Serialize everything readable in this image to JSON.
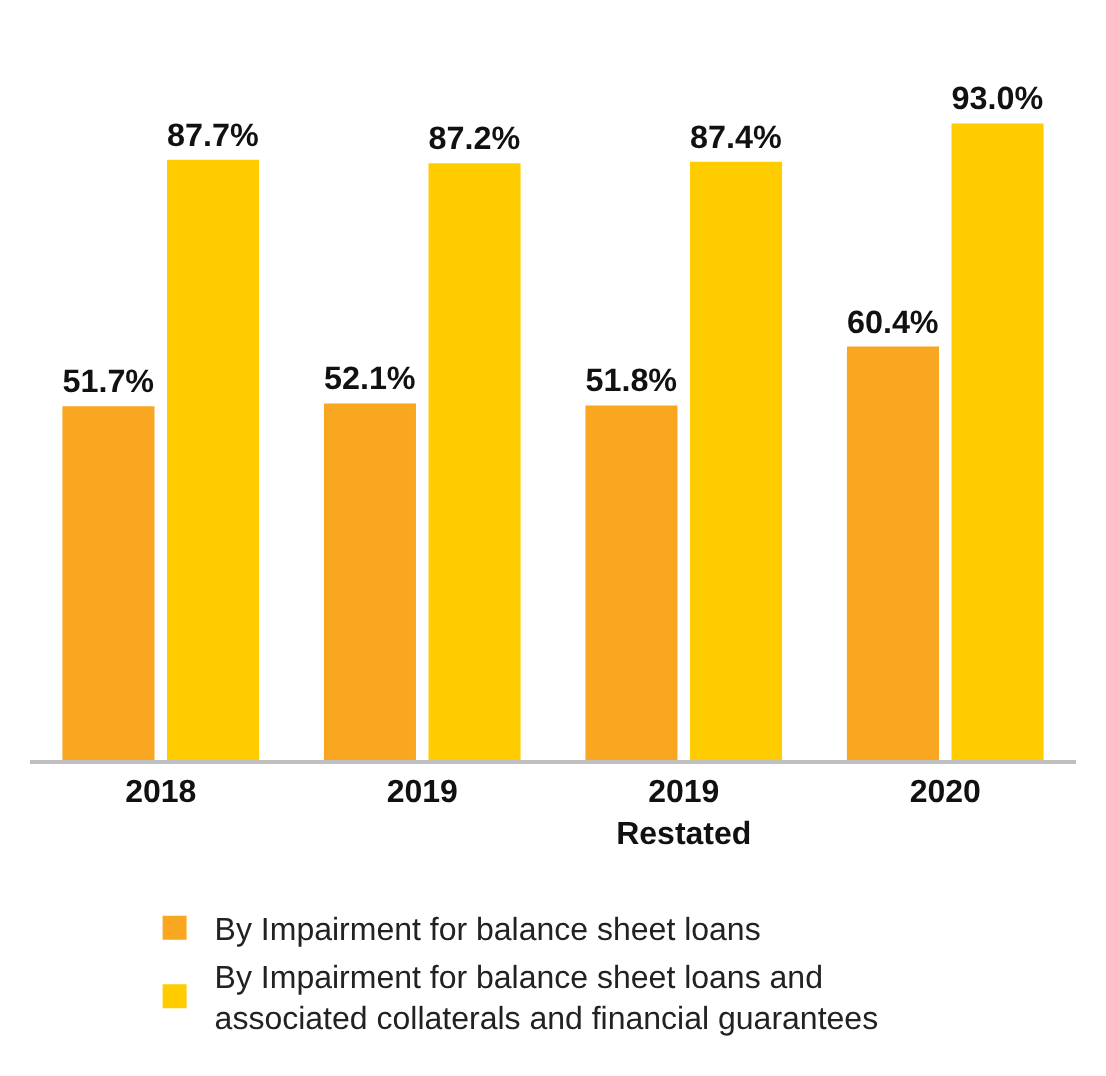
{
  "chart_data": {
    "type": "bar",
    "categories": [
      "2018",
      "2019",
      "2019\nRestated",
      "2020"
    ],
    "series": [
      {
        "name": "By Impairment for balance sheet loans",
        "color": "#f9a620",
        "values": [
          51.7,
          52.1,
          51.8,
          60.4
        ],
        "value_labels": [
          "51.7%",
          "52.1%",
          "51.8%",
          "60.4%"
        ]
      },
      {
        "name": "By Impairment for balance sheet loans and associated collaterals and financial guarantees",
        "color": "#ffcc00",
        "values": [
          87.7,
          87.2,
          87.4,
          93.0
        ],
        "value_labels": [
          "87.7%",
          "87.2%",
          "87.4%",
          "93.0%"
        ]
      }
    ],
    "tick_labels": "x",
    "legend": "bottom"
  }
}
